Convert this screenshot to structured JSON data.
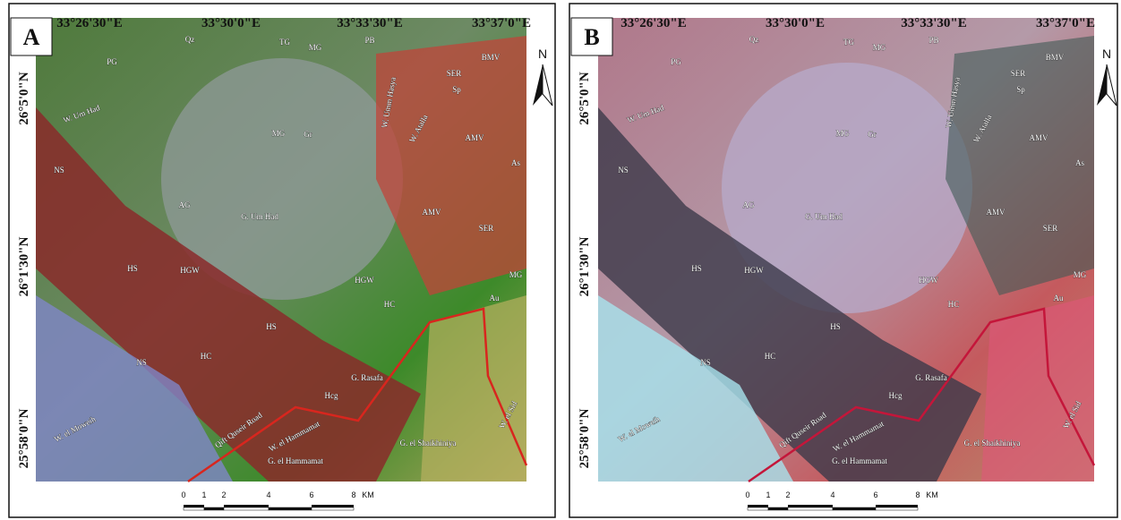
{
  "panels": [
    {
      "label": "A",
      "top_coords": [
        "33°26'30\"E",
        "33°30'0\"E",
        "33°33'30\"E",
        "33°37'0\"E"
      ],
      "left_coords": [
        "26°5'0\"N",
        "26°1'30\"N",
        "25°58'0\"N"
      ],
      "north": "N",
      "scale_labels": [
        "0",
        "1",
        "2",
        "4",
        "6",
        "8",
        "KM"
      ],
      "place_labels": [
        "Qz",
        "TG",
        "MG",
        "PB",
        "PG",
        "SER",
        "BMV",
        "Sp",
        "W. Um Had",
        "MG",
        "Gr",
        "W. Umm Hasya",
        "W. Atalla",
        "AMV",
        "As",
        "NS",
        "AG",
        "G. Um Had",
        "AMV",
        "SER",
        "HS",
        "HGW",
        "HGW",
        "MG",
        "Au",
        "HC",
        "HS",
        "NS",
        "HC",
        "G. Rasafa",
        "Hcg",
        "Qift Quseir Road",
        "W. el Hammamat",
        "W. el Moweih",
        "G. el Hammamat",
        "G. el Shaikhiniya",
        "W. el Sid"
      ]
    },
    {
      "label": "B",
      "top_coords": [
        "33°26'30\"E",
        "33°30'0\"E",
        "33°33'30\"E",
        "33°37'0\"E"
      ],
      "left_coords": [
        "26°5'0\"N",
        "26°1'30\"N",
        "25°58'0\"N"
      ],
      "north": "N",
      "scale_labels": [
        "0",
        "1",
        "2",
        "4",
        "6",
        "8",
        "KM"
      ],
      "place_labels": [
        "Qz",
        "TG",
        "MG",
        "PB",
        "PG",
        "SER",
        "BMV",
        "Sp",
        "W. Um Had",
        "MG",
        "Gr",
        "W. Umm Hasya",
        "W. Atalla",
        "AMV",
        "As",
        "NS",
        "AG",
        "G. Um Had",
        "AMV",
        "SER",
        "HS",
        "HGW",
        "HGW",
        "MG",
        "Au",
        "HC",
        "HS",
        "NS",
        "HC",
        "G. Rasafa",
        "Hcg",
        "Qift Quseir Road",
        "W. el Hammamat",
        "W. el Moweih",
        "G. el Hammamat",
        "G. el Shaikhiniya",
        "W. el Sid"
      ]
    }
  ]
}
